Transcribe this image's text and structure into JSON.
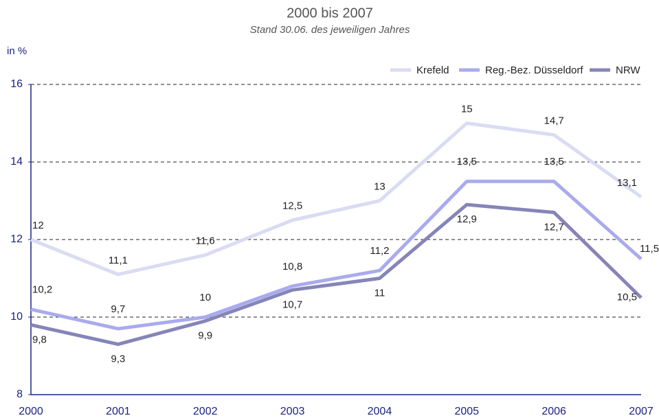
{
  "chart_data": {
    "type": "line",
    "title": "2000 bis 2007",
    "subtitle": "Stand 30.06. des jeweiligen Jahres",
    "y_label": "in %",
    "categories": [
      "2000",
      "2001",
      "2002",
      "2003",
      "2004",
      "2005",
      "2006",
      "2007"
    ],
    "series": [
      {
        "name": "Krefeld",
        "color": "#d9dcf2",
        "values": [
          12,
          11.1,
          11.6,
          12.5,
          13,
          15,
          14.7,
          13.1
        ],
        "value_labels": [
          "12",
          "11,1",
          "11,6",
          "12,5",
          "13",
          "15",
          "14,7",
          "13,1"
        ]
      },
      {
        "name": "Reg.-Bez. Düsseldorf",
        "color": "#aaaaee",
        "values": [
          10.2,
          9.7,
          10,
          10.8,
          11.2,
          13.5,
          13.5,
          11.5
        ],
        "value_labels": [
          "10,2",
          "9,7",
          "10",
          "10,8",
          "11,2",
          "13,5",
          "13,5",
          "11,5"
        ]
      },
      {
        "name": "NRW",
        "color": "#8585b8",
        "values": [
          9.8,
          9.3,
          9.9,
          10.7,
          11,
          12.9,
          12.7,
          10.5
        ],
        "value_labels": [
          "9,8",
          "9,3",
          "9,9",
          "10,7",
          "11",
          "12,9",
          "12,7",
          "10,5"
        ]
      }
    ],
    "ylim": [
      8,
      16
    ],
    "yticks": [
      8,
      10,
      12,
      14,
      16
    ],
    "grid": true,
    "legend": "top-right"
  }
}
